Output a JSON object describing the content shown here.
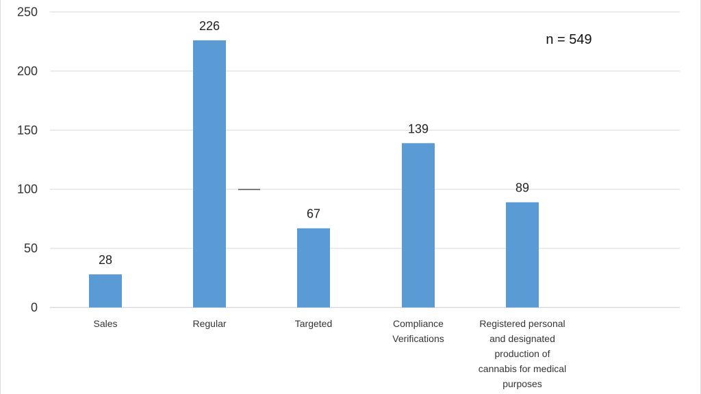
{
  "chart_data": {
    "type": "bar",
    "categories": [
      [
        "Sales"
      ],
      [
        "Regular"
      ],
      [
        "Targeted"
      ],
      [
        "Compliance",
        "Verifications"
      ],
      [
        "Registered personal",
        "and designated",
        "production of",
        "cannabis for medical",
        "purposes"
      ]
    ],
    "values": [
      28,
      226,
      67,
      139,
      89
    ],
    "data_labels": [
      "28",
      "226",
      "67",
      "139",
      "89"
    ],
    "ylim": [
      0,
      250
    ],
    "yticks": [
      0,
      50,
      100,
      150,
      200,
      250
    ],
    "ytick_labels": [
      "0",
      "50",
      "100",
      "150",
      "200",
      "250"
    ],
    "grid": true,
    "annotation": "n = 549",
    "colors": {
      "bar": "#5b9bd5",
      "grid": "#d9d9d9",
      "text": "#333333"
    }
  }
}
